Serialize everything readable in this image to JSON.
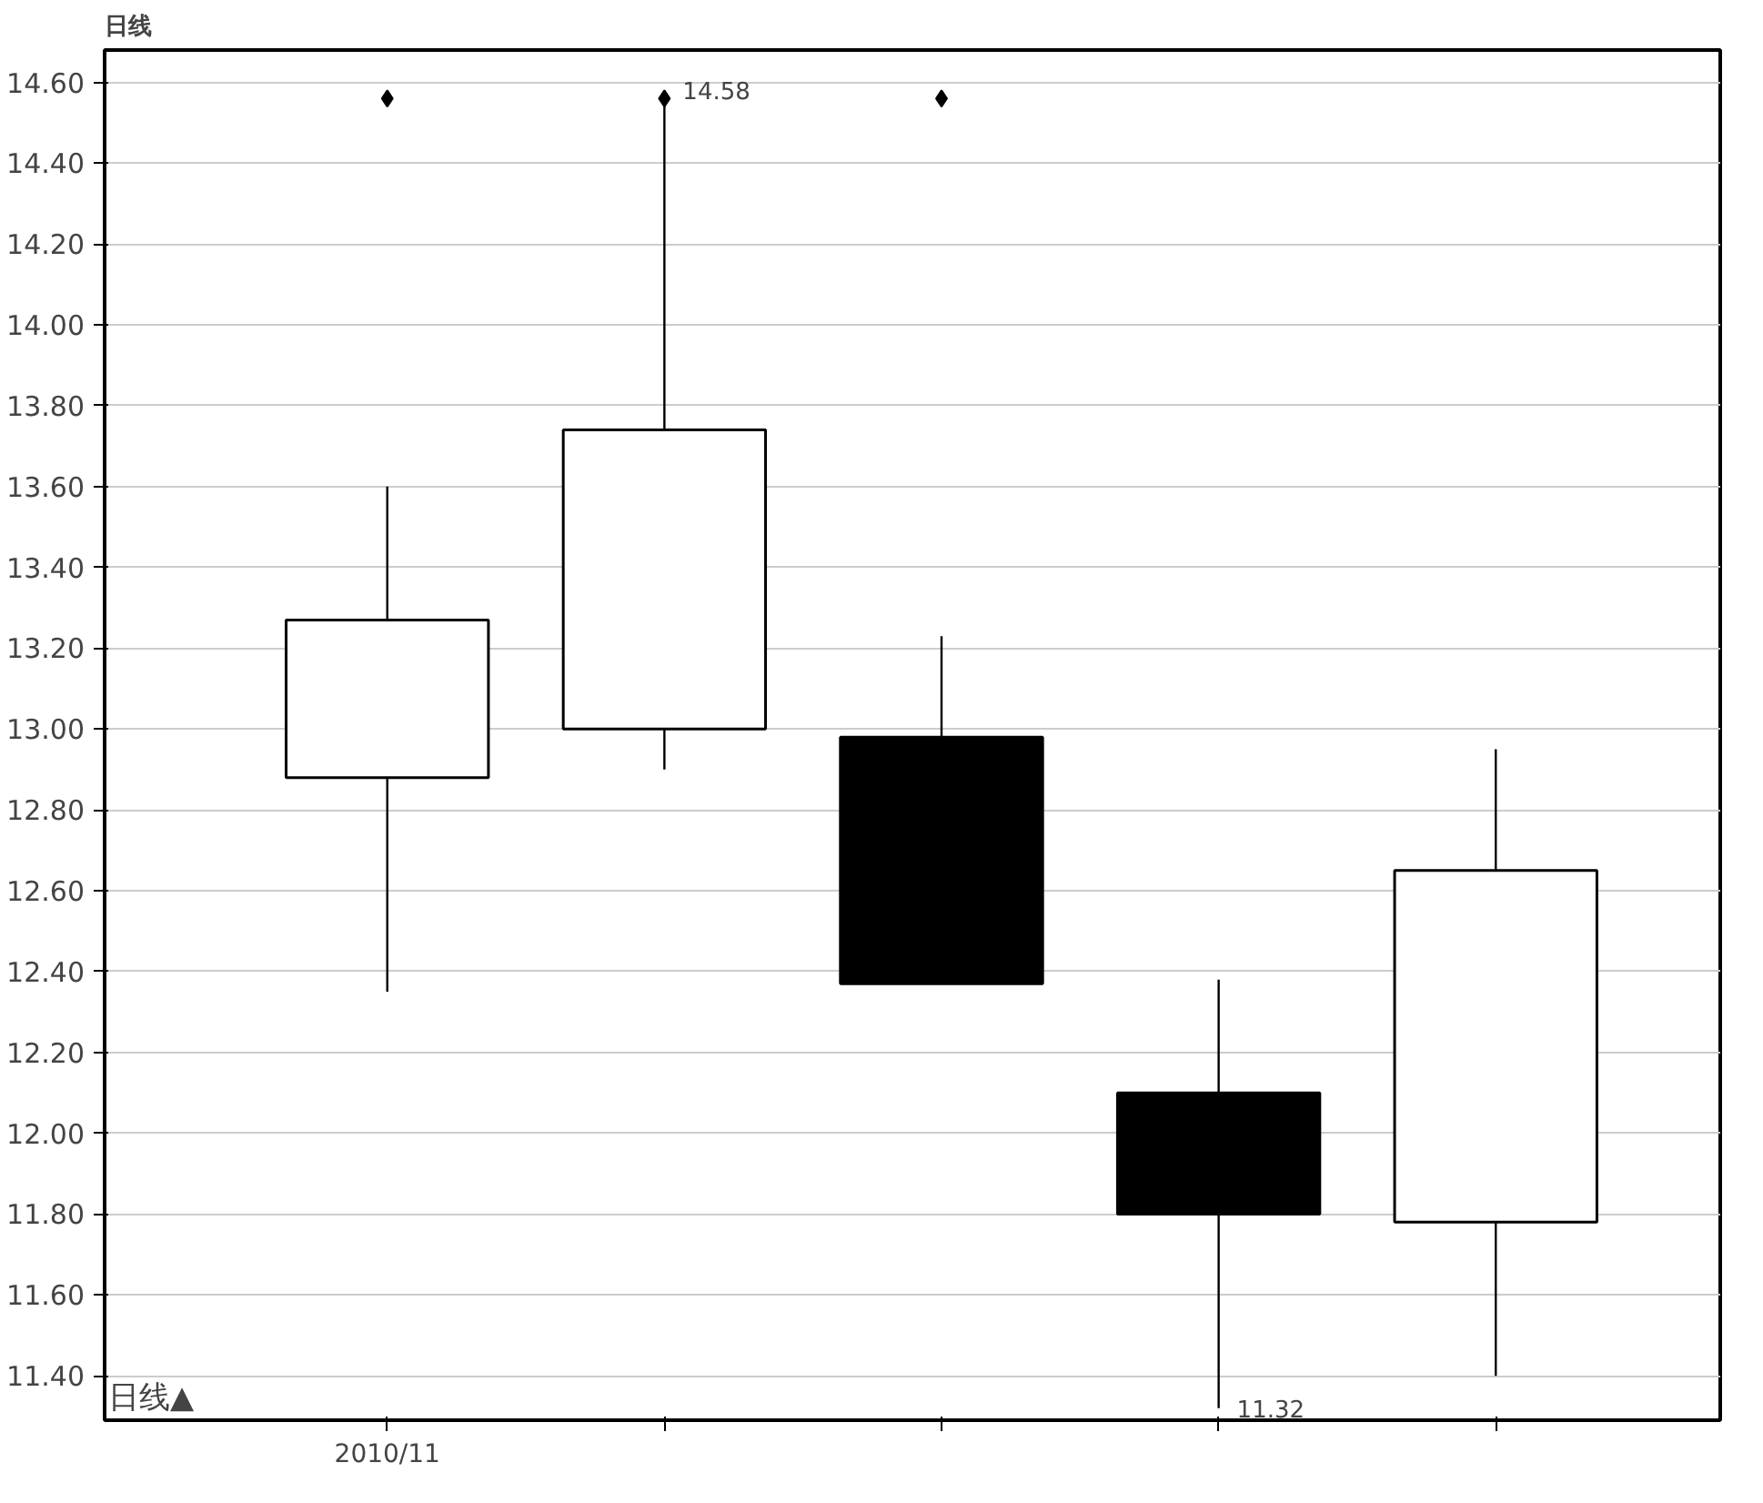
{
  "chart_data": {
    "type": "candlestick",
    "title": "日线",
    "categories": [
      "2010/11",
      null,
      null,
      null,
      null
    ],
    "ohlc": [
      [
        12.88,
        13.6,
        12.35,
        13.27
      ],
      [
        13.0,
        14.58,
        12.9,
        13.74
      ],
      [
        12.98,
        13.23,
        12.37,
        12.37
      ],
      [
        12.1,
        12.38,
        11.32,
        11.8
      ],
      [
        11.78,
        12.95,
        11.4,
        12.65
      ]
    ],
    "series": [
      {
        "type": "scatter",
        "color": "#000000",
        "values": [
          14.56,
          14.56,
          14.56,
          null,
          null
        ]
      }
    ],
    "marker": "diamond",
    "ylim": [
      11.29,
      14.68
    ],
    "yticks": [
      {
        "value": 11.4,
        "label": "11.40"
      },
      {
        "value": 11.6,
        "label": "11.60"
      },
      {
        "value": 11.8,
        "label": "11.80"
      },
      {
        "value": 12.0,
        "label": "12.00"
      },
      {
        "value": 12.2,
        "label": "12.20"
      },
      {
        "value": 12.4,
        "label": "12.40"
      },
      {
        "value": 12.6,
        "label": "12.60"
      },
      {
        "value": 12.8,
        "label": "12.80"
      },
      {
        "value": 13.0,
        "label": "13.00"
      },
      {
        "value": 13.2,
        "label": "13.20"
      },
      {
        "value": 13.4,
        "label": "13.40"
      },
      {
        "value": 13.6,
        "label": "13.60"
      },
      {
        "value": 13.8,
        "label": "13.80"
      },
      {
        "value": 14.0,
        "label": "14.00"
      },
      {
        "value": 14.2,
        "label": "14.20"
      },
      {
        "value": 14.4,
        "label": "14.40"
      },
      {
        "value": 14.6,
        "label": "14.60"
      }
    ],
    "grid": "y",
    "annotations": [
      "14.58",
      "11.32",
      "日线▲"
    ]
  }
}
